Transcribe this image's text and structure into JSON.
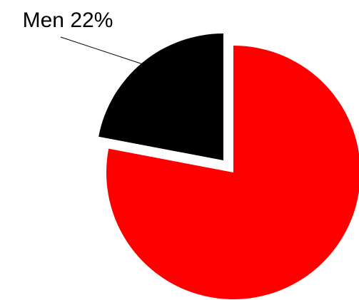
{
  "chart_data": {
    "type": "pie",
    "title": "",
    "slices": [
      {
        "label": "Men",
        "value": 22,
        "color": "#000000",
        "label_text": "Men 22%",
        "exploded": true
      },
      {
        "label": "",
        "value": 78,
        "color": "#ff0000",
        "label_text": "",
        "exploded": false
      }
    ],
    "legend": "none"
  }
}
